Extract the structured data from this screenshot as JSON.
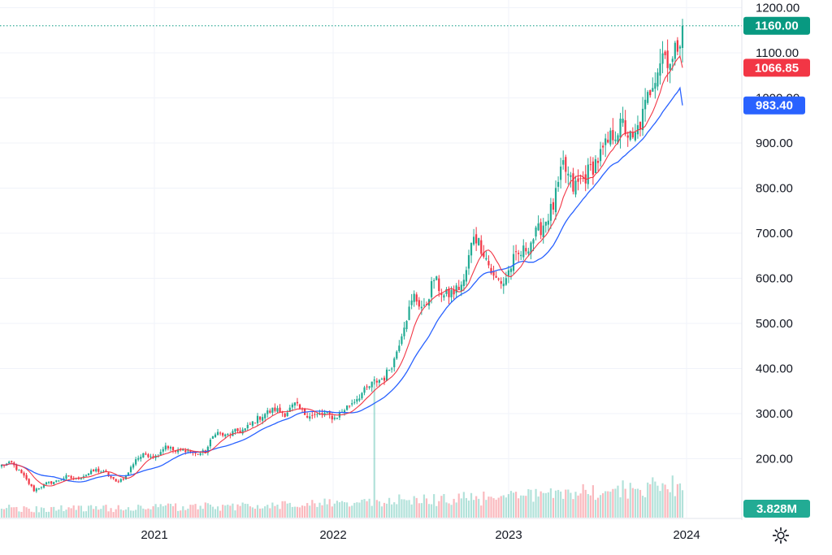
{
  "chart_data": {
    "type": "candlestick",
    "price_axis": {
      "ticks": [
        "1200.00",
        "1100.00",
        "1000.00",
        "900.00",
        "800.00",
        "700.00",
        "600.00",
        "500.00",
        "400.00",
        "300.00",
        "200.00"
      ],
      "tick_values": [
        1200,
        1100,
        1000,
        900,
        800,
        700,
        600,
        500,
        400,
        300,
        200
      ],
      "range": [
        88,
        1212
      ]
    },
    "time_axis": {
      "labels": [
        "2021",
        "2022",
        "2023",
        "2024"
      ]
    },
    "markers": {
      "last_price": {
        "label": "1160.00",
        "value": 1160,
        "color": "#089981"
      },
      "ma_fast": {
        "label": "1066.85",
        "value": 1066.85,
        "color": "#f23645"
      },
      "ma_slow": {
        "label": "983.40",
        "value": 983.4,
        "color": "#2962ff"
      },
      "volume": {
        "label": "3.828M",
        "color": "#22ab94"
      }
    },
    "colors": {
      "up": "#22ab94",
      "down": "#f23645",
      "ma_fast": "#f23645",
      "ma_slow": "#2962ff"
    },
    "close_path": [
      [
        0,
        185
      ],
      [
        4,
        190
      ],
      [
        9,
        160
      ],
      [
        13,
        130
      ],
      [
        18,
        145
      ],
      [
        22,
        150
      ],
      [
        26,
        160
      ],
      [
        30,
        155
      ],
      [
        34,
        165
      ],
      [
        38,
        175
      ],
      [
        42,
        168
      ],
      [
        46,
        148
      ],
      [
        50,
        160
      ],
      [
        54,
        200
      ],
      [
        58,
        210
      ],
      [
        62,
        205
      ],
      [
        66,
        230
      ],
      [
        70,
        215
      ],
      [
        74,
        220
      ],
      [
        78,
        210
      ],
      [
        82,
        215
      ],
      [
        86,
        260
      ],
      [
        90,
        250
      ],
      [
        94,
        260
      ],
      [
        98,
        265
      ],
      [
        102,
        285
      ],
      [
        106,
        300
      ],
      [
        110,
        310
      ],
      [
        114,
        300
      ],
      [
        118,
        320
      ],
      [
        122,
        300
      ],
      [
        126,
        295
      ],
      [
        130,
        300
      ],
      [
        134,
        290
      ],
      [
        138,
        310
      ],
      [
        142,
        330
      ],
      [
        146,
        350
      ],
      [
        150,
        370
      ],
      [
        154,
        380
      ],
      [
        158,
        420
      ],
      [
        162,
        500
      ],
      [
        166,
        560
      ],
      [
        170,
        530
      ],
      [
        174,
        600
      ],
      [
        178,
        560
      ],
      [
        182,
        570
      ],
      [
        186,
        590
      ],
      [
        190,
        700
      ],
      [
        194,
        660
      ],
      [
        198,
        600
      ],
      [
        202,
        590
      ],
      [
        206,
        640
      ],
      [
        210,
        660
      ],
      [
        214,
        690
      ],
      [
        218,
        720
      ],
      [
        222,
        760
      ],
      [
        226,
        850
      ],
      [
        230,
        800
      ],
      [
        234,
        820
      ],
      [
        238,
        850
      ],
      [
        242,
        880
      ],
      [
        246,
        920
      ],
      [
        250,
        940
      ],
      [
        254,
        900
      ],
      [
        258,
        960
      ],
      [
        262,
        1040
      ],
      [
        266,
        1100
      ],
      [
        270,
        1080
      ],
      [
        274,
        1160
      ]
    ],
    "volume_spike": {
      "week": 150,
      "relative_height": 1.0
    },
    "weeks_total": 275
  }
}
